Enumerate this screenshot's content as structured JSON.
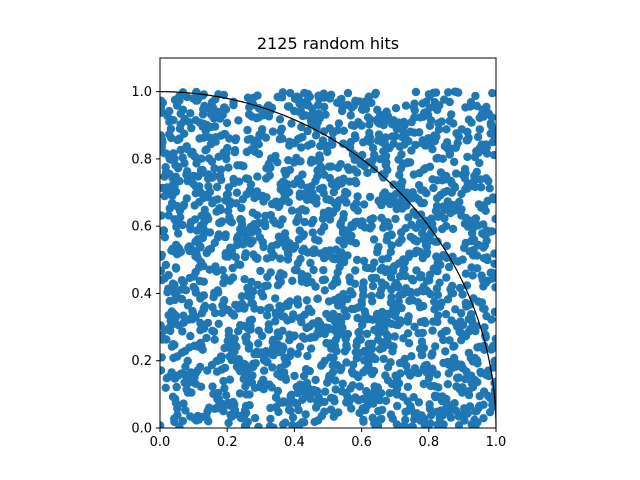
{
  "chart_data": {
    "type": "scatter",
    "title": "2125 random hits",
    "xlabel": "",
    "ylabel": "",
    "xlim": [
      0.0,
      1.0
    ],
    "ylim": [
      0.0,
      1.1
    ],
    "xticks": [
      "0.0",
      "0.2",
      "0.4",
      "0.6",
      "0.8",
      "1.0"
    ],
    "yticks": [
      "0.0",
      "0.2",
      "0.4",
      "0.6",
      "0.8",
      "1.0"
    ],
    "grid": false,
    "legend": "none",
    "point_count": 2125,
    "point_distribution": "uniform over [0,1] x [0,1]",
    "series": [
      {
        "color": "#1f77b4",
        "marker": "circle"
      }
    ],
    "overlay_curve": {
      "shape": "quarter circle x^2 + y^2 = 1",
      "color": "#000000"
    }
  }
}
